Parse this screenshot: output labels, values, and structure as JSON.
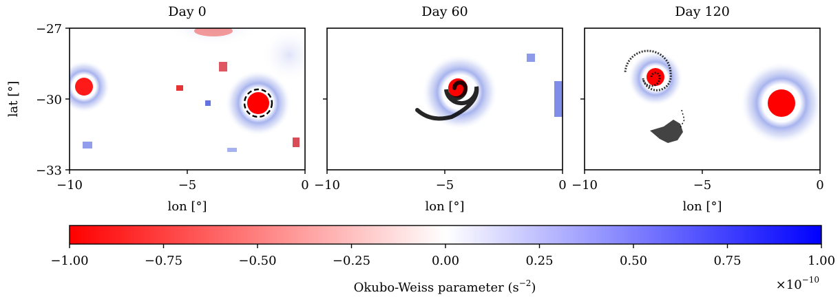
{
  "chart_data": {
    "type": "heatmap",
    "colormap": "bwr",
    "panels": [
      {
        "title": "Day 0",
        "xlabel": "lon [°]",
        "ylabel": "lat [°]",
        "xlim": [
          -10,
          0
        ],
        "ylim": [
          -33,
          -27
        ],
        "xticks": [
          "−10",
          "−5",
          "0"
        ],
        "yticks": [
          "−27",
          "−30",
          "−33"
        ],
        "eddy_cores": [
          {
            "lon": -9.4,
            "lat": -29.4
          },
          {
            "lon": -2.1,
            "lat": -30.2
          }
        ],
        "contour": {
          "lon": -2.1,
          "lat": -30.2,
          "style": "dashed"
        }
      },
      {
        "title": "Day 60",
        "xlabel": "lon [°]",
        "xlim": [
          -10,
          0
        ],
        "ylim": [
          -33,
          -27
        ],
        "xticks": [
          "−10",
          "−5",
          "0"
        ],
        "eddy_cores": [
          {
            "lon": -4.8,
            "lat": -29.5
          }
        ],
        "particles": "spiral"
      },
      {
        "title": "Day 120",
        "xlabel": "lon [°]",
        "xlim": [
          -10,
          0
        ],
        "ylim": [
          -33,
          -27
        ],
        "xticks": [
          "−10",
          "−5",
          "0"
        ],
        "eddy_cores": [
          {
            "lon": -7.4,
            "lat": -28.9
          },
          {
            "lon": -1.3,
            "lat": -30.1
          }
        ],
        "particles": "spiral+cluster"
      }
    ],
    "colorbar": {
      "label": "Okubo-Weiss parameter (s",
      "label_exp": "−2",
      "label_end": ")",
      "range": [
        -1.0,
        1.0
      ],
      "ticks": [
        "−1.00",
        "−0.75",
        "−0.50",
        "−0.25",
        "0.00",
        "0.25",
        "0.50",
        "0.75",
        "1.00"
      ],
      "scale_prefix": "×10",
      "scale_exp": "−10"
    },
    "colors": {
      "negative": "#ff0000",
      "zero": "#ffffff",
      "positive": "#0000ff",
      "particles": "#000000"
    }
  }
}
